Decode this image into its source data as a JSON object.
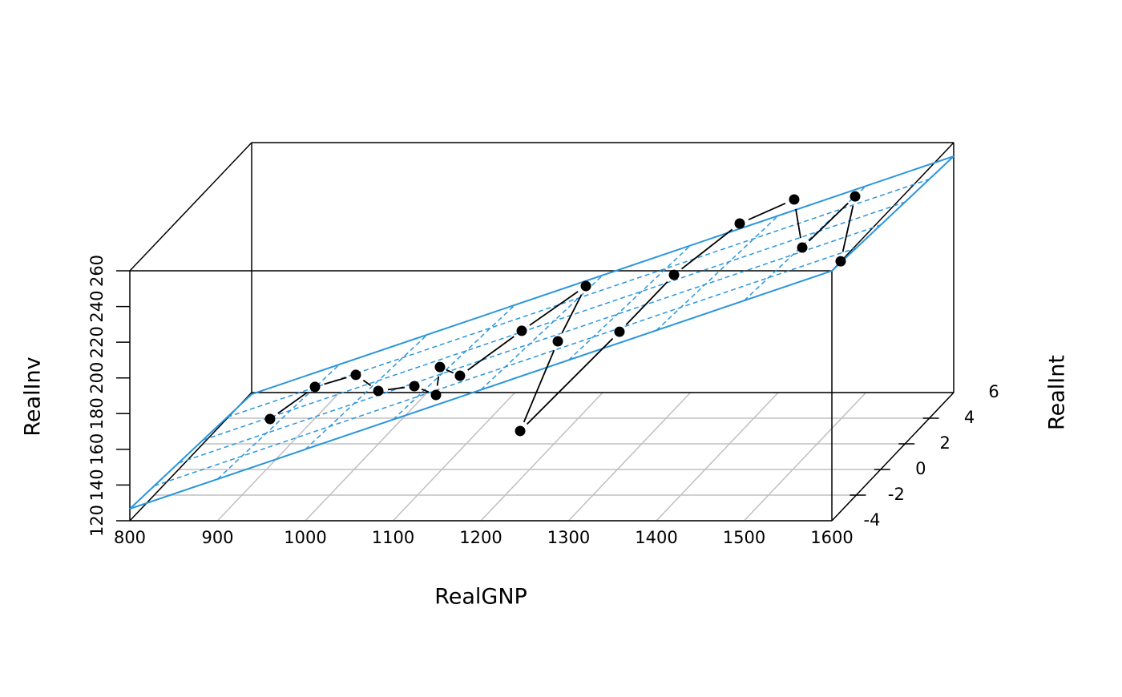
{
  "chart_data": {
    "type": "scatter3d",
    "x_label": "RealGNP",
    "y_label": "RealInt",
    "z_label": "RealInv",
    "x": [
      876.5,
      927.7,
      988.1,
      1027.6,
      1054.8,
      1107.2,
      1084,
      1106.8,
      1163.3,
      1222.5,
      1218.3,
      1230.9,
      1330.2,
      1364.6,
      1411.7,
      1446,
      1496.8,
      1529.3,
      1554.5
    ],
    "y": [
      2,
      2,
      1,
      0,
      1,
      -1,
      1,
      1,
      2,
      3,
      1,
      -3,
      -2,
      0,
      2,
      4,
      1,
      3,
      0
    ],
    "z": [
      133.9,
      151.9,
      165.8,
      164.0,
      159.5,
      168.9,
      170.2,
      165.3,
      183.3,
      201.2,
      184.6,
      163.1,
      211.5,
      229.0,
      243.4,
      242.5,
      237.1,
      251.4,
      236.6
    ],
    "xlim": [
      800,
      1600
    ],
    "ylim": [
      -4,
      6
    ],
    "zlim": [
      120,
      260
    ],
    "xticks": [
      800,
      900,
      1000,
      1100,
      1200,
      1300,
      1400,
      1500,
      1600
    ],
    "yticks": [
      -4,
      -2,
      0,
      2,
      4,
      6
    ],
    "zticks": [
      120,
      140,
      160,
      180,
      200,
      220,
      240,
      260
    ],
    "color": "#000000",
    "grid": true,
    "plane": {
      "color": "#2b96dc",
      "intercept": -9.64,
      "slope_x": 0.1666,
      "slope_y": -0.76
    }
  }
}
